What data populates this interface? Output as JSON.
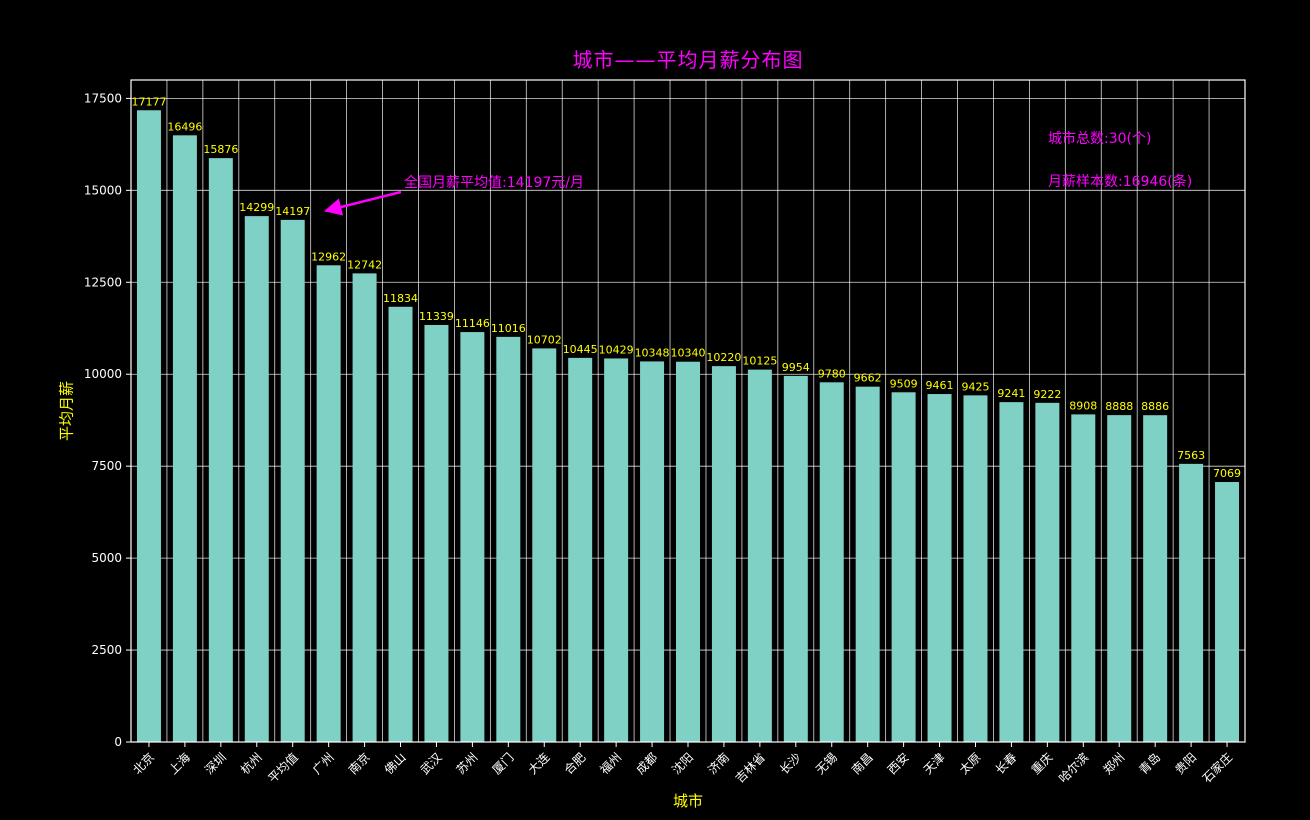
{
  "chart_data": {
    "type": "bar",
    "title": "城市——平均月薪分布图",
    "xlabel": "城市",
    "ylabel": "平均月薪",
    "categories": [
      "北京",
      "上海",
      "深圳",
      "杭州",
      "平均值",
      "广州",
      "南京",
      "佛山",
      "武汉",
      "苏州",
      "厦门",
      "大连",
      "合肥",
      "福州",
      "成都",
      "沈阳",
      "济南",
      "吉林省",
      "长沙",
      "无锡",
      "南昌",
      "西安",
      "天津",
      "太原",
      "长春",
      "重庆",
      "哈尔滨",
      "郑州",
      "青岛",
      "贵阳",
      "石家庄"
    ],
    "values": [
      17177,
      16496,
      15876,
      14299,
      14197,
      12962,
      12742,
      11834,
      11339,
      11146,
      11016,
      10702,
      10445,
      10429,
      10348,
      10340,
      10220,
      10125,
      9954,
      9780,
      9662,
      9509,
      9461,
      9425,
      9241,
      9222,
      8908,
      8888,
      8886,
      7563,
      7069
    ],
    "yticks": [
      0,
      2500,
      5000,
      7500,
      10000,
      12500,
      15000,
      17500
    ],
    "ylim": [
      0,
      18000
    ],
    "grid": true,
    "legend_position": "none",
    "annotation": {
      "text": "全国月薪平均值:14197元/月",
      "target_category": "平均值"
    },
    "notes": {
      "city_count": "城市总数:30(个)",
      "sample_count": "月薪样本数:16946(条)"
    },
    "colors": {
      "background": "#000000",
      "bar": "#7fd0c5",
      "value_label": "#ffff00",
      "axis_label": "#ffff00",
      "tick_label": "#ffffff",
      "title": "#ff00ff",
      "annotation": "#ff00ff",
      "grid": "#ffffff"
    }
  }
}
